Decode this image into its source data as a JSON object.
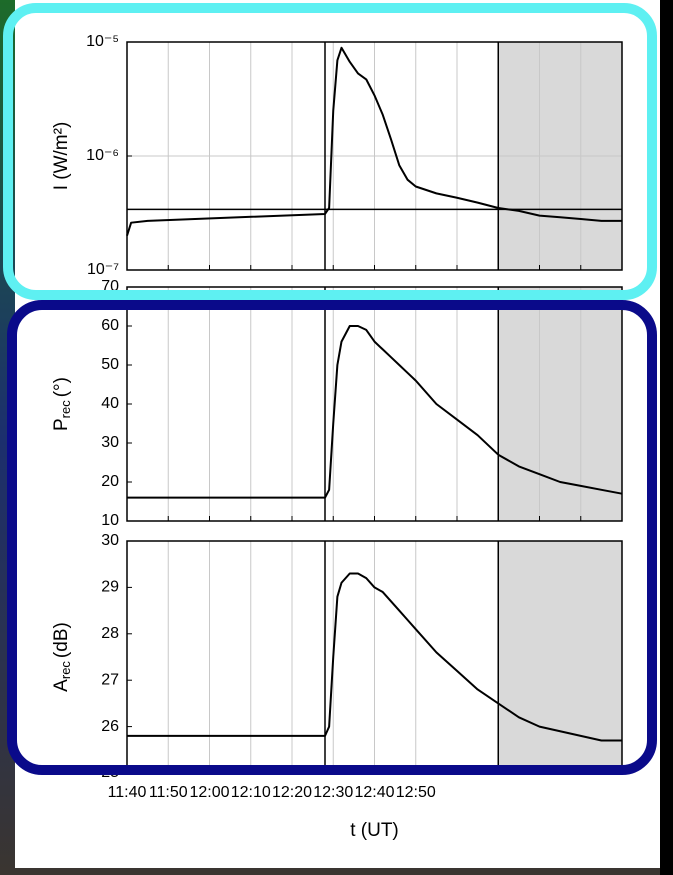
{
  "chart_data": [
    {
      "type": "line",
      "log_y": true,
      "grid": "x",
      "ylabel": {
        "main": "I (W/m²)"
      },
      "x": [
        700,
        701,
        705,
        748,
        749,
        750,
        751,
        752,
        754,
        756,
        758,
        760,
        762,
        764,
        766,
        768,
        770,
        775,
        780,
        785,
        790,
        795,
        800,
        805,
        810,
        815,
        820
      ],
      "values": [
        2e-07,
        2.6e-07,
        2.7e-07,
        3.1e-07,
        3.5e-07,
        2.5e-06,
        6.9e-06,
        8.9e-06,
        6.7e-06,
        5.3e-06,
        4.7e-06,
        3.4e-06,
        2.3e-06,
        1.4e-06,
        8.3e-07,
        6.2e-07,
        5.4e-07,
        4.7e-07,
        4.3e-07,
        3.9e-07,
        3.5e-07,
        3.3e-07,
        3e-07,
        2.9e-07,
        2.8e-07,
        2.7e-07,
        2.7e-07
      ],
      "color": "#000000",
      "xlim": [
        700,
        820
      ],
      "xticks": [
        700,
        710,
        720,
        730,
        740,
        750,
        760,
        770,
        780,
        790,
        800,
        810,
        820
      ],
      "ylim": [
        1e-07,
        1e-05
      ],
      "yticks": [
        {
          "value": 1e-07,
          "label": "10⁻⁷"
        },
        {
          "value": 1e-06,
          "label": "10⁻⁶"
        },
        {
          "value": 1e-05,
          "label": "10⁻⁵"
        }
      ],
      "hline": 3.4e-07,
      "vline": 748,
      "shade": [
        790,
        820
      ]
    },
    {
      "type": "line",
      "log_y": false,
      "grid": "x",
      "ylabel": {
        "main": "P",
        "sub": "rec",
        "unit": "(°)"
      },
      "x": [
        700,
        701,
        705,
        748,
        749,
        750,
        751,
        752,
        754,
        756,
        758,
        760,
        762,
        764,
        766,
        768,
        770,
        775,
        780,
        785,
        790,
        795,
        800,
        805,
        810,
        815,
        820
      ],
      "values": [
        16,
        16,
        16,
        16,
        18,
        35,
        50,
        56,
        60,
        60,
        59,
        56,
        54,
        52,
        50,
        48,
        46,
        40,
        36,
        32,
        27,
        24,
        22,
        20,
        19,
        18,
        17
      ],
      "color": "#000000",
      "xlim": [
        700,
        820
      ],
      "xticks": [
        700,
        710,
        720,
        730,
        740,
        750,
        760,
        770,
        780,
        790,
        800,
        810,
        820
      ],
      "ylim": [
        10,
        70
      ],
      "yticks": [
        10,
        20,
        30,
        40,
        50,
        60,
        70
      ],
      "vline": 748,
      "shade": [
        790,
        820
      ]
    },
    {
      "type": "line",
      "log_y": false,
      "grid": "x",
      "ylabel": {
        "main": "A",
        "sub": "rec",
        "unit": "(dB)"
      },
      "xlabel": "t (UT)",
      "x": [
        700,
        701,
        705,
        748,
        749,
        750,
        751,
        752,
        754,
        756,
        758,
        760,
        762,
        764,
        766,
        768,
        770,
        775,
        780,
        785,
        790,
        795,
        800,
        805,
        810,
        815,
        820
      ],
      "values": [
        25.8,
        25.8,
        25.8,
        25.8,
        26.0,
        27.5,
        28.8,
        29.1,
        29.3,
        29.3,
        29.2,
        29.0,
        28.9,
        28.7,
        28.5,
        28.3,
        28.1,
        27.6,
        27.2,
        26.8,
        26.5,
        26.2,
        26.0,
        25.9,
        25.8,
        25.7,
        25.7
      ],
      "color": "#000000",
      "xlim": [
        700,
        820
      ],
      "xticks": [
        {
          "value": 700,
          "label": "11:40"
        },
        {
          "value": 710,
          "label": "11:50"
        },
        {
          "value": 720,
          "label": "12:00"
        },
        {
          "value": 730,
          "label": "12:10"
        },
        {
          "value": 740,
          "label": "12:20"
        },
        {
          "value": 750,
          "label": "12:30"
        },
        {
          "value": 760,
          "label": "12:40"
        },
        {
          "value": 770,
          "label": "12:50"
        }
      ],
      "ylim": [
        25,
        30
      ],
      "yticks": [
        25,
        26,
        27,
        28,
        29,
        30
      ],
      "vline": 748,
      "shade": [
        790,
        820
      ]
    }
  ]
}
